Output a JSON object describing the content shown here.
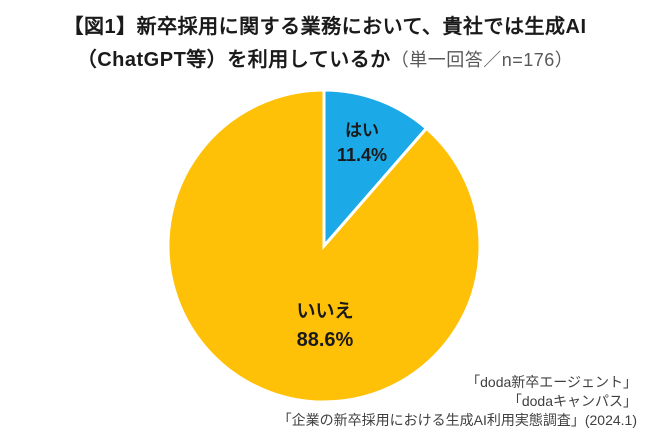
{
  "title": {
    "line1": "【図1】新卒採用に関する業務において、貴社では生成AI",
    "line2_main": "（ChatGPT等）を利用しているか",
    "line2_note": "（単一回答／n=176）"
  },
  "chart_data": {
    "type": "pie",
    "title": "【図1】新卒採用に関する業務において、貴社では生成AI（ChatGPT等）を利用しているか",
    "subtitle": "（単一回答／n=176）",
    "n": 176,
    "start_angle_deg": 0,
    "direction": "clockwise",
    "legend_position": "none (labels inside slices)",
    "slices": [
      {
        "label": "はい",
        "value": 11.4,
        "pct_label": "11.4%",
        "color": "#1BA9E8"
      },
      {
        "label": "いいえ",
        "value": 88.6,
        "pct_label": "88.6%",
        "color": "#FFC008"
      }
    ],
    "slice_separator_color": "#ffffff"
  },
  "source": {
    "line1": "「doda新卒エージェント」",
    "line2": "「dodaキャンパス」",
    "line3": "「企業の新卒採用における生成AI利用実態調査」(2024.1)"
  },
  "colors": {
    "yes_blue": "#1BA9E8",
    "no_yellow": "#FFC008",
    "title_text": "#1a1a1a",
    "note_gray": "#595959",
    "source_text": "#404040",
    "background": "#ffffff"
  }
}
